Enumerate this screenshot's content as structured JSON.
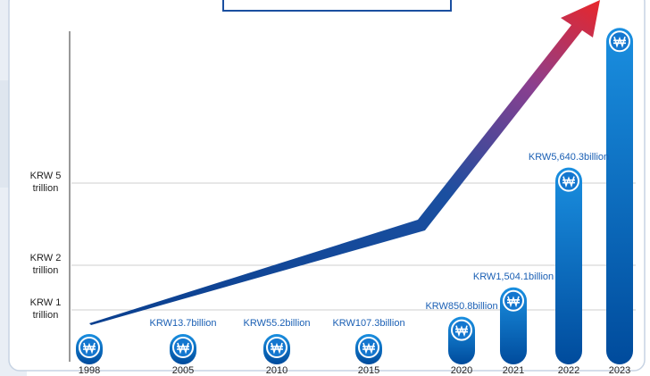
{
  "chart_data": {
    "type": "bar",
    "categories": [
      "1998",
      "2005",
      "2010",
      "2015",
      "2020",
      "2021",
      "2022",
      "2023"
    ],
    "values": [
      1,
      13.7,
      55.2,
      107.3,
      850.8,
      1504.1,
      5640.3,
      11400
    ],
    "value_labels": [
      null,
      "KRW13.7billion",
      "KRW55.2billion",
      "KRW107.3billion",
      "KRW850.8billion",
      "KRW1,504.1billion",
      "KRW5,640.3billion",
      null
    ],
    "ylim": [
      0,
      12000
    ],
    "yticks": [
      {
        "value": 1000,
        "label": "KRW 1 trillion"
      },
      {
        "value": 2000,
        "label": "KRW 2 trillion"
      },
      {
        "value": 5000,
        "label": "KRW 5 trillion"
      }
    ],
    "grid": true,
    "color": "#0a6fc4"
  }
}
